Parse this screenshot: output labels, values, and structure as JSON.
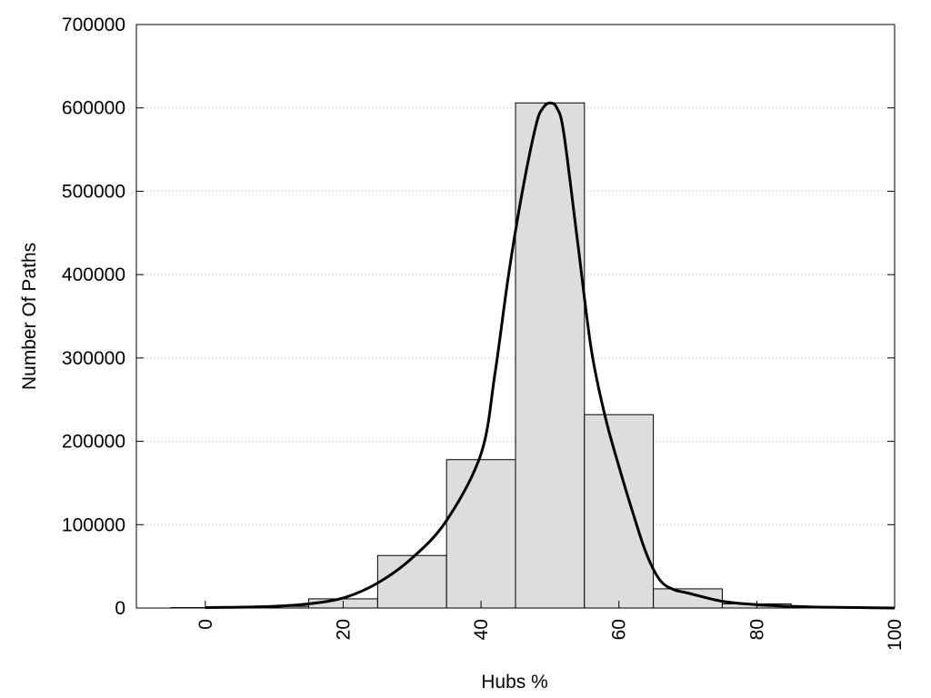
{
  "chart_data": {
    "type": "bar",
    "title": "",
    "xlabel": "Hubs %",
    "ylabel": "Number Of Paths",
    "xlim": [
      -10,
      100
    ],
    "ylim": [
      0,
      700000
    ],
    "x_ticks": [
      0,
      20,
      40,
      60,
      80,
      100
    ],
    "y_ticks": [
      0,
      100000,
      200000,
      300000,
      400000,
      500000,
      600000,
      700000
    ],
    "grid": "horizontal dotted",
    "legend": "none",
    "bin_width": 10,
    "bins": [
      {
        "center": 0,
        "value": 500
      },
      {
        "center": 10,
        "value": 2000
      },
      {
        "center": 20,
        "value": 11000
      },
      {
        "center": 30,
        "value": 63000
      },
      {
        "center": 40,
        "value": 178000
      },
      {
        "center": 50,
        "value": 606000
      },
      {
        "center": 60,
        "value": 232000
      },
      {
        "center": 70,
        "value": 23000
      },
      {
        "center": 80,
        "value": 5000
      },
      {
        "center": 90,
        "value": 1000
      },
      {
        "center": 100,
        "value": 0
      }
    ],
    "curve": {
      "x": [
        0,
        5,
        10,
        15,
        20,
        25,
        30,
        35,
        40,
        42,
        44,
        46,
        48,
        49,
        50,
        51,
        52,
        54,
        56,
        58,
        60,
        62,
        64,
        66,
        68,
        70,
        75,
        80,
        85,
        90,
        95,
        100
      ],
      "y": [
        500,
        1000,
        2000,
        5000,
        12000,
        30000,
        60000,
        105000,
        185000,
        280000,
        400000,
        500000,
        580000,
        600000,
        606000,
        600000,
        570000,
        440000,
        310000,
        230000,
        170000,
        115000,
        65000,
        33000,
        22000,
        18000,
        8000,
        4000,
        2000,
        1000,
        500,
        0
      ]
    },
    "colors": {
      "bar_fill": "#dddddd",
      "bar_stroke": "#000000",
      "curve": "#000000",
      "grid": "#bbbbbb"
    }
  }
}
